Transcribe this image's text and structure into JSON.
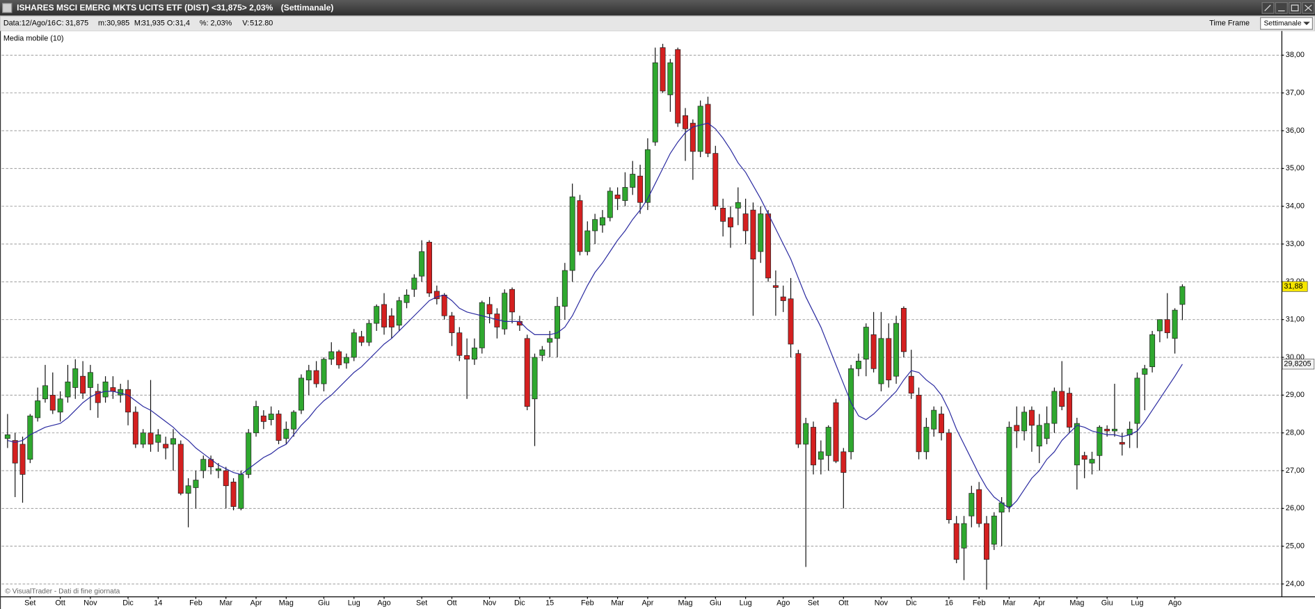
{
  "header": {
    "title": "ISHARES MSCI EMERG MKTS UCITS ETF (DIST) <31,875> 2,03%",
    "period": "(Settimanale)",
    "info": [
      {
        "label": "Data:12/Ago/16",
        "color": "#555555"
      },
      {
        "label": "C:",
        "color": "#555555"
      },
      {
        "label": "31,875",
        "color": "#2030c0"
      },
      {
        "label": "m:",
        "color": "#555555"
      },
      {
        "label": "30,985",
        "color": "#222222"
      },
      {
        "label": "M:",
        "color": "#555555"
      },
      {
        "label": "31,935",
        "color": "#222222"
      },
      {
        "label": "O:",
        "color": "#555555"
      },
      {
        "label": "31,4",
        "color": "#222222"
      },
      {
        "label": "%:",
        "color": "#555555"
      },
      {
        "label": "2,03%",
        "color": "#20a020"
      },
      {
        "label": "V:",
        "color": "#555555"
      },
      {
        "label": "512.80",
        "color": "#222222"
      }
    ],
    "time_frame_label": "Time Frame",
    "time_frame": "Settimanale"
  },
  "footer": "© VisualTrader - Dati di fine giornata",
  "chart_data": {
    "type": "candlestick",
    "categories": [
      null,
      null,
      null,
      "Set",
      null,
      null,
      null,
      "Ott",
      null,
      null,
      null,
      "Nov",
      null,
      null,
      null,
      null,
      "Dic",
      null,
      null,
      null,
      "14",
      null,
      null,
      null,
      null,
      "Feb",
      null,
      null,
      null,
      "Mar",
      null,
      null,
      null,
      "Apr",
      null,
      null,
      null,
      "Mag",
      null,
      null,
      null,
      null,
      "Giu",
      null,
      null,
      null,
      "Lug",
      null,
      null,
      null,
      "Ago",
      null,
      null,
      null,
      null,
      "Set",
      null,
      null,
      null,
      "Ott",
      null,
      null,
      null,
      null,
      "Nov",
      null,
      null,
      null,
      "Dic",
      null,
      null,
      null,
      "15",
      null,
      null,
      null,
      null,
      "Feb",
      null,
      null,
      null,
      "Mar",
      null,
      null,
      null,
      "Apr",
      null,
      null,
      null,
      null,
      "Mag",
      null,
      null,
      null,
      "Giu",
      null,
      null,
      null,
      "Lug",
      null,
      null,
      null,
      null,
      "Ago",
      null,
      null,
      null,
      "Set",
      null,
      null,
      null,
      "Ott",
      null,
      null,
      null,
      null,
      "Nov",
      null,
      null,
      null,
      "Dic",
      null,
      null,
      null,
      null,
      "16",
      null,
      null,
      null,
      "Feb",
      null,
      null,
      null,
      "Mar",
      null,
      null,
      null,
      "Apr",
      null,
      null,
      null,
      null,
      "Mag",
      null,
      null,
      null,
      "Giu",
      null,
      null,
      null,
      "Lug",
      null,
      null,
      null,
      null,
      "Ago",
      null
    ],
    "ohlc": [
      [
        27.85,
        28.5,
        27.6,
        27.95
      ],
      [
        27.8,
        28.0,
        26.3,
        27.2
      ],
      [
        27.7,
        27.9,
        26.15,
        26.9
      ],
      [
        27.3,
        28.5,
        27.2,
        28.45
      ],
      [
        28.4,
        29.2,
        28.3,
        28.85
      ],
      [
        28.9,
        29.8,
        28.8,
        29.25
      ],
      [
        29.0,
        29.6,
        28.5,
        28.6
      ],
      [
        28.55,
        29.1,
        28.3,
        28.9
      ],
      [
        28.95,
        29.8,
        28.8,
        29.35
      ],
      [
        29.2,
        29.95,
        28.9,
        29.7
      ],
      [
        29.5,
        29.9,
        28.9,
        29.05
      ],
      [
        29.2,
        29.8,
        28.6,
        29.6
      ],
      [
        29.1,
        29.3,
        28.4,
        28.8
      ],
      [
        28.95,
        29.5,
        28.8,
        29.35
      ],
      [
        29.2,
        29.5,
        28.9,
        29.1
      ],
      [
        29.0,
        29.3,
        28.8,
        29.15
      ],
      [
        29.15,
        29.4,
        28.2,
        28.55
      ],
      [
        28.55,
        28.7,
        27.6,
        27.7
      ],
      [
        27.7,
        28.1,
        27.6,
        28.0
      ],
      [
        28.0,
        29.4,
        27.5,
        27.7
      ],
      [
        27.75,
        28.1,
        27.5,
        27.95
      ],
      [
        27.7,
        27.9,
        27.3,
        27.6
      ],
      [
        27.7,
        28.1,
        27.0,
        27.85
      ],
      [
        27.7,
        27.8,
        26.35,
        26.4
      ],
      [
        26.4,
        26.8,
        25.5,
        26.6
      ],
      [
        26.55,
        27.0,
        26.0,
        26.75
      ],
      [
        27.0,
        27.4,
        26.8,
        27.3
      ],
      [
        27.3,
        27.4,
        26.9,
        27.1
      ],
      [
        27.0,
        27.2,
        26.8,
        27.05
      ],
      [
        27.0,
        27.1,
        26.0,
        26.6
      ],
      [
        26.7,
        26.8,
        25.95,
        26.05
      ],
      [
        26.0,
        27.0,
        25.95,
        26.9
      ],
      [
        26.9,
        28.1,
        26.8,
        28.0
      ],
      [
        28.0,
        28.85,
        27.9,
        28.7
      ],
      [
        28.45,
        28.6,
        28.1,
        28.3
      ],
      [
        28.35,
        28.7,
        28.2,
        28.5
      ],
      [
        28.5,
        28.6,
        27.7,
        27.8
      ],
      [
        27.85,
        28.3,
        27.7,
        28.1
      ],
      [
        28.1,
        28.6,
        27.9,
        28.55
      ],
      [
        28.6,
        29.55,
        28.5,
        29.45
      ],
      [
        29.4,
        29.8,
        29.0,
        29.65
      ],
      [
        29.65,
        29.9,
        29.2,
        29.3
      ],
      [
        29.3,
        30.0,
        29.1,
        29.95
      ],
      [
        29.95,
        30.4,
        29.8,
        30.15
      ],
      [
        30.15,
        30.2,
        29.7,
        29.8
      ],
      [
        29.85,
        30.1,
        29.7,
        30.0
      ],
      [
        30.0,
        30.75,
        29.9,
        30.65
      ],
      [
        30.55,
        30.7,
        30.3,
        30.4
      ],
      [
        30.4,
        31.0,
        30.3,
        30.9
      ],
      [
        30.9,
        31.4,
        30.7,
        31.35
      ],
      [
        31.4,
        31.7,
        30.6,
        30.8
      ],
      [
        31.1,
        31.3,
        30.5,
        30.8
      ],
      [
        30.85,
        31.6,
        30.7,
        31.5
      ],
      [
        31.45,
        31.8,
        31.3,
        31.65
      ],
      [
        31.8,
        32.2,
        31.6,
        32.1
      ],
      [
        32.15,
        33.1,
        32.0,
        32.8
      ],
      [
        33.05,
        33.1,
        31.6,
        31.7
      ],
      [
        31.75,
        31.9,
        31.4,
        31.55
      ],
      [
        31.65,
        31.7,
        31.0,
        31.1
      ],
      [
        31.1,
        31.2,
        30.3,
        30.65
      ],
      [
        30.65,
        30.8,
        29.9,
        30.05
      ],
      [
        30.05,
        30.5,
        28.9,
        29.95
      ],
      [
        29.95,
        30.5,
        29.8,
        30.25
      ],
      [
        30.25,
        31.5,
        30.1,
        31.45
      ],
      [
        31.4,
        31.6,
        30.9,
        31.15
      ],
      [
        31.15,
        31.3,
        30.5,
        30.8
      ],
      [
        30.75,
        31.8,
        30.6,
        31.7
      ],
      [
        31.8,
        31.85,
        30.9,
        31.2
      ],
      [
        30.95,
        31.1,
        30.7,
        30.85
      ],
      [
        30.5,
        30.6,
        28.6,
        28.7
      ],
      [
        28.9,
        30.1,
        27.65,
        30.0
      ],
      [
        30.05,
        30.3,
        29.9,
        30.2
      ],
      [
        30.4,
        30.7,
        30.0,
        30.5
      ],
      [
        30.5,
        31.6,
        30.0,
        31.35
      ],
      [
        31.35,
        32.5,
        31.0,
        32.3
      ],
      [
        32.3,
        34.6,
        32.0,
        34.25
      ],
      [
        34.15,
        34.3,
        32.7,
        32.8
      ],
      [
        32.8,
        33.6,
        32.7,
        33.35
      ],
      [
        33.35,
        33.8,
        33.0,
        33.65
      ],
      [
        33.5,
        33.9,
        33.3,
        33.7
      ],
      [
        33.7,
        34.5,
        33.6,
        34.4
      ],
      [
        34.3,
        34.5,
        33.9,
        34.2
      ],
      [
        34.15,
        34.9,
        34.0,
        34.5
      ],
      [
        34.5,
        35.2,
        34.3,
        34.85
      ],
      [
        34.8,
        35.1,
        33.8,
        34.1
      ],
      [
        34.1,
        35.8,
        33.9,
        35.5
      ],
      [
        35.7,
        38.2,
        35.6,
        37.8
      ],
      [
        38.2,
        38.3,
        37.0,
        37.05
      ],
      [
        36.95,
        37.9,
        36.5,
        37.8
      ],
      [
        38.15,
        38.2,
        36.1,
        36.2
      ],
      [
        36.4,
        36.6,
        35.2,
        36.05
      ],
      [
        36.2,
        36.3,
        34.7,
        35.45
      ],
      [
        35.45,
        36.8,
        35.3,
        36.65
      ],
      [
        36.7,
        36.9,
        35.3,
        35.4
      ],
      [
        35.4,
        35.6,
        33.9,
        34.0
      ],
      [
        33.95,
        34.2,
        33.2,
        33.6
      ],
      [
        33.7,
        34.0,
        32.9,
        33.45
      ],
      [
        33.95,
        34.5,
        33.5,
        34.1
      ],
      [
        33.8,
        34.2,
        33.0,
        33.35
      ],
      [
        33.9,
        34.1,
        31.1,
        32.6
      ],
      [
        32.8,
        34.0,
        32.5,
        33.8
      ],
      [
        33.8,
        33.9,
        32.0,
        32.1
      ],
      [
        31.9,
        32.3,
        31.1,
        31.85
      ],
      [
        31.6,
        31.9,
        31.2,
        31.5
      ],
      [
        31.55,
        32.1,
        30.0,
        30.35
      ],
      [
        30.1,
        30.2,
        27.6,
        27.7
      ],
      [
        27.7,
        28.4,
        24.45,
        28.25
      ],
      [
        28.15,
        28.3,
        26.9,
        27.15
      ],
      [
        27.3,
        27.8,
        26.9,
        27.5
      ],
      [
        27.4,
        28.2,
        27.0,
        28.15
      ],
      [
        28.8,
        28.9,
        27.2,
        27.25
      ],
      [
        27.5,
        27.6,
        26.0,
        26.95
      ],
      [
        27.5,
        29.8,
        27.3,
        29.7
      ],
      [
        29.7,
        30.1,
        29.5,
        29.9
      ],
      [
        29.95,
        30.9,
        29.5,
        30.8
      ],
      [
        30.6,
        31.2,
        29.6,
        29.7
      ],
      [
        29.3,
        31.2,
        29.1,
        30.5
      ],
      [
        30.5,
        30.9,
        29.2,
        29.4
      ],
      [
        29.5,
        31.1,
        29.3,
        30.9
      ],
      [
        31.3,
        31.35,
        30.0,
        30.15
      ],
      [
        29.5,
        30.2,
        28.9,
        29.05
      ],
      [
        29.0,
        29.2,
        27.3,
        27.5
      ],
      [
        27.5,
        28.4,
        27.3,
        28.15
      ],
      [
        28.1,
        28.7,
        27.9,
        28.6
      ],
      [
        28.5,
        28.7,
        27.8,
        28.0
      ],
      [
        28.0,
        28.1,
        25.6,
        25.7
      ],
      [
        25.6,
        25.8,
        24.55,
        24.65
      ],
      [
        24.95,
        25.8,
        24.1,
        25.6
      ],
      [
        25.8,
        26.6,
        25.5,
        26.4
      ],
      [
        26.5,
        26.7,
        25.5,
        25.6
      ],
      [
        25.6,
        25.8,
        23.85,
        24.65
      ],
      [
        25.05,
        25.9,
        24.9,
        25.8
      ],
      [
        25.9,
        26.3,
        25.0,
        26.15
      ],
      [
        26.05,
        28.3,
        25.9,
        28.15
      ],
      [
        28.2,
        28.7,
        27.6,
        28.05
      ],
      [
        28.05,
        28.7,
        27.8,
        28.55
      ],
      [
        28.6,
        28.7,
        27.5,
        28.2
      ],
      [
        27.65,
        28.5,
        27.2,
        28.2
      ],
      [
        27.85,
        28.7,
        27.7,
        28.25
      ],
      [
        28.25,
        29.2,
        28.0,
        29.1
      ],
      [
        29.1,
        29.9,
        28.6,
        28.7
      ],
      [
        29.05,
        29.2,
        28.0,
        28.15
      ],
      [
        27.15,
        28.4,
        26.5,
        28.25
      ],
      [
        27.4,
        27.5,
        26.8,
        27.3
      ],
      [
        27.2,
        27.5,
        26.9,
        27.3
      ],
      [
        27.4,
        28.2,
        27.0,
        28.15
      ],
      [
        28.1,
        28.2,
        27.9,
        28.05
      ],
      [
        28.05,
        29.3,
        27.9,
        28.1
      ],
      [
        27.75,
        28.0,
        27.4,
        27.7
      ],
      [
        27.95,
        28.3,
        27.6,
        28.1
      ],
      [
        28.25,
        29.6,
        27.6,
        29.45
      ],
      [
        29.55,
        29.8,
        28.6,
        29.7
      ],
      [
        29.75,
        30.7,
        29.6,
        30.6
      ],
      [
        30.7,
        31.0,
        30.4,
        31.0
      ],
      [
        31.0,
        31.7,
        30.5,
        30.65
      ],
      [
        30.5,
        31.3,
        30.1,
        31.25
      ],
      [
        31.4,
        31.935,
        30.985,
        31.875
      ]
    ],
    "up_color": "#2fa82f",
    "down_color": "#d42020",
    "ma": {
      "name": "Media mobile (10)",
      "color": "#2a2aa0",
      "values": [
        27.8,
        27.75,
        27.8,
        27.95,
        28.05,
        28.15,
        28.2,
        28.25,
        28.4,
        28.6,
        28.8,
        28.95,
        29.05,
        29.1,
        29.1,
        29.05,
        29.0,
        28.85,
        28.7,
        28.6,
        28.45,
        28.3,
        28.15,
        27.95,
        27.8,
        27.6,
        27.45,
        27.3,
        27.15,
        27.05,
        26.95,
        26.9,
        27.05,
        27.2,
        27.35,
        27.45,
        27.6,
        27.7,
        27.95,
        28.2,
        28.4,
        28.65,
        28.85,
        29.0,
        29.2,
        29.4,
        29.6,
        29.75,
        29.95,
        30.15,
        30.35,
        30.5,
        30.7,
        30.9,
        31.1,
        31.3,
        31.5,
        31.6,
        31.65,
        31.5,
        31.3,
        31.2,
        31.15,
        31.1,
        31.05,
        31.0,
        30.95,
        30.95,
        30.95,
        30.75,
        30.6,
        30.6,
        30.6,
        30.65,
        30.8,
        31.1,
        31.5,
        31.9,
        32.25,
        32.5,
        32.8,
        33.1,
        33.35,
        33.65,
        33.9,
        34.2,
        34.6,
        35.0,
        35.4,
        35.7,
        35.95,
        36.1,
        36.15,
        36.2,
        36.05,
        35.8,
        35.5,
        35.15,
        34.9,
        34.55,
        34.2,
        33.8,
        33.4,
        33.0,
        32.6,
        32.1,
        31.6,
        31.2,
        30.8,
        30.3,
        29.8,
        29.3,
        28.8,
        28.45,
        28.35,
        28.5,
        28.7,
        28.9,
        29.1,
        29.4,
        29.65,
        29.6,
        29.4,
        29.25,
        29.0,
        28.6,
        28.1,
        27.7,
        27.3,
        26.9,
        26.55,
        26.3,
        26.15,
        26.0,
        26.2,
        26.5,
        26.8,
        27.0,
        27.3,
        27.5,
        27.8,
        28.0,
        28.2,
        28.15,
        28.05,
        28.0,
        27.95,
        27.95,
        27.9,
        27.95,
        28.05,
        28.3,
        28.6,
        28.9,
        29.2,
        29.5,
        29.82
      ]
    },
    "ylim": [
      23.67,
      38.64
    ],
    "yticks": [
      {
        "value": 24,
        "label": "24,00"
      },
      {
        "value": 25,
        "label": "25,00"
      },
      {
        "value": 26,
        "label": "26,00"
      },
      {
        "value": 27,
        "label": "27,00"
      },
      {
        "value": 28,
        "label": "28,00"
      },
      {
        "value": 29,
        "label": "29,00"
      },
      {
        "value": 30,
        "label": "30,00"
      },
      {
        "value": 31,
        "label": "31,00"
      },
      {
        "value": 32,
        "label": "32,00"
      },
      {
        "value": 33,
        "label": "33,00"
      },
      {
        "value": 34,
        "label": "34,00"
      },
      {
        "value": 35,
        "label": "35,00"
      },
      {
        "value": 36,
        "label": "36,00"
      },
      {
        "value": 37,
        "label": "37,00"
      },
      {
        "value": 38,
        "label": "38,00"
      }
    ],
    "grid": true,
    "year_color": "#d42020",
    "price_tag": {
      "value": 31.875,
      "label": "31,88",
      "color": "#f5e600"
    },
    "ma_tag": {
      "value": 29.8205,
      "label": "29,8205",
      "color": "#f2f2f2"
    }
  }
}
